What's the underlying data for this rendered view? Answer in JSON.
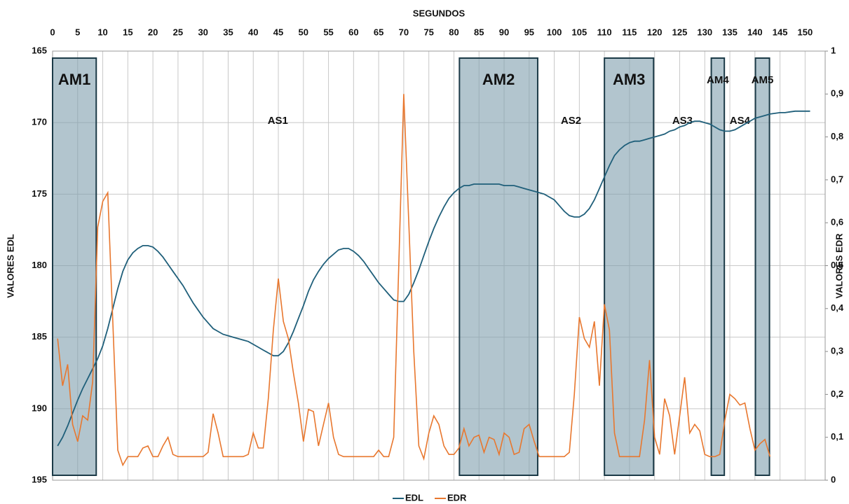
{
  "chart_data": {
    "type": "line",
    "x_label": "SEGUNDOS",
    "y_label": "VALORES EDL",
    "y2_label": "VALORES EDR",
    "x": [
      1,
      2,
      3,
      4,
      5,
      6,
      7,
      8,
      9,
      10,
      11,
      12,
      13,
      14,
      15,
      16,
      17,
      18,
      19,
      20,
      21,
      22,
      23,
      24,
      25,
      26,
      27,
      28,
      29,
      30,
      31,
      32,
      33,
      34,
      35,
      36,
      37,
      38,
      39,
      40,
      41,
      42,
      43,
      44,
      45,
      46,
      47,
      48,
      49,
      50,
      51,
      52,
      53,
      54,
      55,
      56,
      57,
      58,
      59,
      60,
      61,
      62,
      63,
      64,
      65,
      66,
      67,
      68,
      69,
      70,
      71,
      72,
      73,
      74,
      75,
      76,
      77,
      78,
      79,
      80,
      81,
      82,
      83,
      84,
      85,
      86,
      87,
      88,
      89,
      90,
      91,
      92,
      93,
      94,
      95,
      96,
      97,
      98,
      99,
      100,
      101,
      102,
      103,
      104,
      105,
      106,
      107,
      108,
      109,
      110,
      111,
      112,
      113,
      114,
      115,
      116,
      117,
      118,
      119,
      120,
      121,
      122,
      123,
      124,
      125,
      126,
      127,
      128,
      129,
      130,
      131,
      132,
      133,
      134,
      135,
      136,
      137,
      138,
      139,
      140,
      141,
      142,
      143,
      144,
      145,
      146,
      147,
      148,
      149,
      150,
      151
    ],
    "series": [
      {
        "name": "EDL",
        "color": "#1f5f7a",
        "axis": "y",
        "values": [
          192.6,
          192.0,
          191.2,
          190.3,
          189.4,
          188.6,
          187.9,
          187.2,
          186.5,
          185.6,
          184.4,
          183.0,
          181.6,
          180.4,
          179.6,
          179.1,
          178.8,
          178.6,
          178.6,
          178.7,
          179.0,
          179.4,
          179.9,
          180.4,
          180.9,
          181.4,
          182.0,
          182.6,
          183.1,
          183.6,
          184.0,
          184.4,
          184.6,
          184.8,
          184.9,
          185.0,
          185.1,
          185.2,
          185.3,
          185.5,
          185.7,
          185.9,
          186.1,
          186.3,
          186.3,
          186.0,
          185.4,
          184.6,
          183.7,
          182.8,
          181.8,
          181.0,
          180.4,
          179.9,
          179.5,
          179.2,
          178.9,
          178.8,
          178.8,
          179.0,
          179.3,
          179.7,
          180.2,
          180.7,
          181.2,
          181.6,
          182.0,
          182.4,
          182.5,
          182.5,
          182.0,
          181.2,
          180.3,
          179.3,
          178.3,
          177.4,
          176.6,
          175.9,
          175.3,
          174.9,
          174.6,
          174.4,
          174.4,
          174.3,
          174.3,
          174.3,
          174.3,
          174.3,
          174.3,
          174.4,
          174.4,
          174.4,
          174.5,
          174.6,
          174.7,
          174.8,
          174.9,
          175.0,
          175.2,
          175.4,
          175.8,
          176.2,
          176.5,
          176.6,
          176.6,
          176.4,
          176.0,
          175.4,
          174.6,
          173.8,
          173.0,
          172.3,
          171.9,
          171.6,
          171.4,
          171.3,
          171.3,
          171.2,
          171.1,
          171.0,
          170.9,
          170.8,
          170.6,
          170.5,
          170.3,
          170.2,
          170.0,
          169.9,
          169.9,
          170.0,
          170.1,
          170.3,
          170.5,
          170.6,
          170.6,
          170.5,
          170.3,
          170.1,
          169.9,
          169.7,
          169.6,
          169.5,
          169.4,
          169.35,
          169.3,
          169.3,
          169.25,
          169.2,
          169.2,
          169.2,
          169.2
        ]
      },
      {
        "name": "EDR",
        "color": "#e8772e",
        "axis": "y2",
        "values": [
          0.33,
          0.22,
          0.27,
          0.13,
          0.09,
          0.15,
          0.14,
          0.23,
          0.59,
          0.65,
          0.67,
          0.37,
          0.07,
          0.035,
          0.055,
          0.055,
          0.055,
          0.075,
          0.08,
          0.055,
          0.055,
          0.08,
          0.1,
          0.06,
          0.055,
          0.055,
          0.055,
          0.055,
          0.055,
          0.055,
          0.065,
          0.155,
          0.11,
          0.055,
          0.055,
          0.055,
          0.055,
          0.055,
          0.06,
          0.11,
          0.075,
          0.075,
          0.19,
          0.35,
          0.47,
          0.37,
          0.33,
          0.25,
          0.18,
          0.09,
          0.165,
          0.16,
          0.08,
          0.13,
          0.18,
          0.1,
          0.06,
          0.055,
          0.055,
          0.055,
          0.055,
          0.055,
          0.055,
          0.055,
          0.07,
          0.055,
          0.055,
          0.1,
          0.5,
          0.9,
          0.6,
          0.3,
          0.08,
          0.05,
          0.11,
          0.15,
          0.13,
          0.08,
          0.06,
          0.06,
          0.075,
          0.12,
          0.08,
          0.1,
          0.105,
          0.065,
          0.1,
          0.095,
          0.06,
          0.11,
          0.1,
          0.06,
          0.065,
          0.12,
          0.13,
          0.09,
          0.055,
          0.055,
          0.055,
          0.055,
          0.055,
          0.055,
          0.065,
          0.2,
          0.38,
          0.33,
          0.31,
          0.37,
          0.22,
          0.41,
          0.35,
          0.11,
          0.055,
          0.055,
          0.055,
          0.055,
          0.055,
          0.14,
          0.28,
          0.1,
          0.06,
          0.19,
          0.15,
          0.06,
          0.15,
          0.24,
          0.11,
          0.13,
          0.115,
          0.06,
          0.055,
          0.055,
          0.06,
          0.14,
          0.2,
          0.19,
          0.175,
          0.18,
          0.12,
          0.07,
          0.085,
          0.095,
          0.055,
          null,
          null,
          null,
          null,
          null,
          null,
          null,
          null
        ]
      }
    ],
    "xlim": [
      0,
      154
    ],
    "xticks": [
      0,
      5,
      10,
      15,
      20,
      25,
      30,
      35,
      40,
      45,
      50,
      55,
      60,
      65,
      70,
      75,
      80,
      85,
      90,
      95,
      100,
      105,
      110,
      115,
      120,
      125,
      130,
      135,
      140,
      145,
      150
    ],
    "ylim": [
      195,
      165
    ],
    "yticks": [
      165,
      170,
      175,
      180,
      185,
      190,
      195
    ],
    "y2lim": [
      0,
      1
    ],
    "y2ticks": [
      0,
      {
        "value": 0.1,
        "label": "0,1"
      },
      {
        "value": 0.2,
        "label": "0,2"
      },
      {
        "value": 0.3,
        "label": "0,3"
      },
      {
        "value": 0.4,
        "label": "0,4"
      },
      {
        "value": 0.5,
        "label": "0,5"
      },
      {
        "value": 0.6,
        "label": "0,6"
      },
      {
        "value": 0.7,
        "label": "0,7"
      },
      {
        "value": 0.8,
        "label": "0,8"
      },
      {
        "value": 0.9,
        "label": "0,9"
      },
      1
    ],
    "grid": true,
    "legend": "bottom",
    "region_color": "#7f9fae",
    "regions": [
      {
        "label": "AM1",
        "x": [
          0,
          8.7
        ]
      },
      {
        "label": "AM2",
        "x": [
          81.1,
          96.7
        ]
      },
      {
        "label": "AM3",
        "x": [
          110,
          119.8
        ]
      },
      {
        "label": "AM4",
        "x": [
          131.3,
          133.9
        ]
      },
      {
        "label": "AM5",
        "x": [
          140.1,
          142.9
        ]
      }
    ],
    "segment_labels": [
      "AS1",
      "AS2",
      "AS3",
      "AS4"
    ]
  }
}
